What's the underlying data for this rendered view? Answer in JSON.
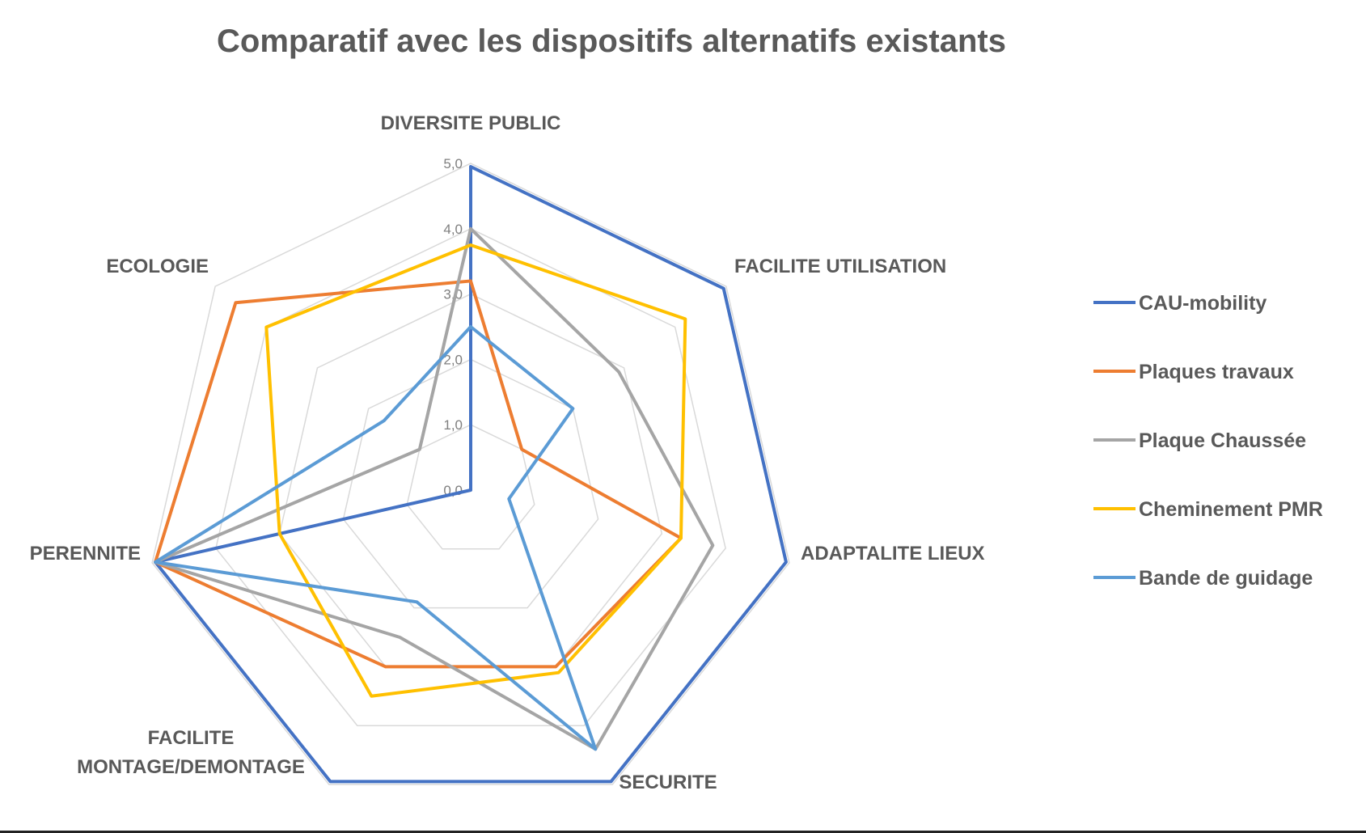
{
  "chart_data": {
    "type": "radar",
    "title": "Comparatif avec les dispositifs alternatifs existants",
    "categories": [
      [
        "DIVERSITE PUBLIC"
      ],
      [
        "FACILITE UTILISATION"
      ],
      [
        "ADAPTALITE LIEUX"
      ],
      [
        "SECURITE"
      ],
      [
        "FACILITE",
        "MONTAGE/DEMONTAGE"
      ],
      [
        "PERENNITE"
      ],
      [
        "ECOLOGIE"
      ]
    ],
    "rmin": 0,
    "rmax": 5,
    "ticks": [
      {
        "value": 0,
        "label": "0,0"
      },
      {
        "value": 1,
        "label": "1,0"
      },
      {
        "value": 2,
        "label": "2,0"
      },
      {
        "value": 3,
        "label": "3,0"
      },
      {
        "value": 4,
        "label": "4,0"
      },
      {
        "value": 5,
        "label": "5,0"
      }
    ],
    "legend_position": "right",
    "series": [
      {
        "name": "CAU-mobility",
        "color": "#4472c4",
        "values": [
          4.95,
          4.95,
          4.95,
          4.95,
          4.95,
          4.95,
          0.0
        ]
      },
      {
        "name": "Plaques travaux",
        "color": "#ed7d31",
        "values": [
          3.2,
          1.0,
          3.3,
          3.0,
          3.0,
          4.95,
          4.6
        ]
      },
      {
        "name": "Plaque Chaussée",
        "color": "#a5a5a5",
        "values": [
          4.0,
          2.9,
          3.8,
          4.4,
          2.5,
          4.95,
          1.0
        ]
      },
      {
        "name": "Cheminement PMR",
        "color": "#ffc000",
        "values": [
          3.75,
          4.2,
          3.3,
          3.1,
          3.5,
          3.0,
          4.0
        ]
      },
      {
        "name": "Bande de guidage",
        "color": "#5b9bd5",
        "values": [
          2.5,
          2.0,
          0.6,
          4.4,
          1.9,
          4.95,
          1.7
        ]
      }
    ]
  }
}
